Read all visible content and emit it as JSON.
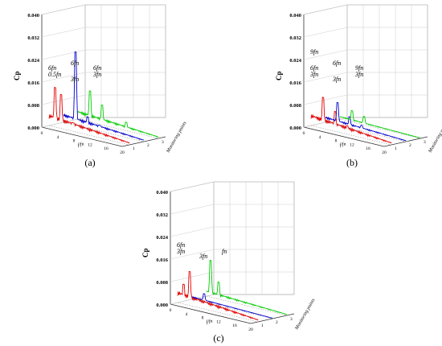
{
  "figure": {
    "panels": [
      {
        "id": "a",
        "label": "(a)"
      },
      {
        "id": "b",
        "label": "(b)"
      },
      {
        "id": "c",
        "label": "(c)"
      }
    ]
  },
  "chart_data": [
    {
      "type": "line",
      "panel": "(a)",
      "z_ticks": [
        "0.000",
        "0.008",
        "0.016",
        "0.024",
        "0.032",
        "0.040"
      ],
      "z_label": "Cp",
      "z_range": [
        0,
        0.04
      ],
      "x_ticks": [
        "0",
        "4",
        "8",
        "12",
        "16",
        "20"
      ],
      "x_label": "f/fn",
      "x_range": [
        0,
        20
      ],
      "y_ticks": [
        "1",
        "2",
        "3"
      ],
      "y_label": "Monitoring points",
      "series": [
        {
          "color": "#e00000",
          "depth": 1,
          "peaks": [
            {
              "x": 1.5,
              "y": 0.014
            },
            {
              "x": 3,
              "y": 0.012
            },
            {
              "x": 6,
              "y": 0.003
            }
          ],
          "base": 0.004
        },
        {
          "color": "#0000cc",
          "depth": 2,
          "peaks": [
            {
              "x": 3,
              "y": 0.026
            },
            {
              "x": 6,
              "y": 0.004
            },
            {
              "x": 9,
              "y": 0.002
            }
          ],
          "base": 0.003
        },
        {
          "color": "#00cc00",
          "depth": 3,
          "peaks": [
            {
              "x": 3,
              "y": 0.011
            },
            {
              "x": 6,
              "y": 0.007
            },
            {
              "x": 12,
              "y": 0.003
            }
          ],
          "base": 0.003
        }
      ],
      "annotations": [
        "0.5fn",
        "3fn",
        "3fn",
        "6fn",
        "6fn",
        "6fn"
      ]
    },
    {
      "type": "line",
      "panel": "(b)",
      "z_ticks": [
        "0.000",
        "0.008",
        "0.016",
        "0.024",
        "0.032",
        "0.040"
      ],
      "z_label": "Cp",
      "z_range": [
        0,
        0.04
      ],
      "x_ticks": [
        "0",
        "4",
        "8",
        "12",
        "16",
        "20"
      ],
      "x_label": "f/fn",
      "x_range": [
        0,
        20
      ],
      "y_ticks": [
        "1",
        "2",
        "3"
      ],
      "y_label": "Monitoring points",
      "series": [
        {
          "color": "#e00000",
          "depth": 1,
          "peaks": [
            {
              "x": 3,
              "y": 0.011
            },
            {
              "x": 6,
              "y": 0.007
            },
            {
              "x": 9,
              "y": 0.003
            }
          ],
          "base": 0.004
        },
        {
          "color": "#0000cc",
          "depth": 2,
          "peaks": [
            {
              "x": 3,
              "y": 0.008
            },
            {
              "x": 6,
              "y": 0.004
            },
            {
              "x": 9,
              "y": 0.002
            }
          ],
          "base": 0.002
        },
        {
          "color": "#00cc00",
          "depth": 3,
          "peaks": [
            {
              "x": 3,
              "y": 0.004
            },
            {
              "x": 6,
              "y": 0.003
            }
          ],
          "base": 0.001
        }
      ],
      "annotations": [
        "3fn",
        "3fn",
        "3fn",
        "6fn",
        "6fn",
        "9fn",
        "9fn"
      ]
    },
    {
      "type": "line",
      "panel": "(c)",
      "z_ticks": [
        "0.000",
        "0.008",
        "0.016",
        "0.024",
        "0.032",
        "0.040"
      ],
      "z_label": "Cp",
      "z_range": [
        0,
        0.04
      ],
      "x_ticks": [
        "0",
        "4",
        "8",
        "12",
        "16",
        "20"
      ],
      "x_label": "f/fn",
      "x_range": [
        0,
        20
      ],
      "y_ticks": [
        "1",
        "2",
        "3"
      ],
      "y_label": "Monitoring points",
      "series": [
        {
          "color": "#e00000",
          "depth": 1,
          "peaks": [
            {
              "x": 3,
              "y": 0.012
            },
            {
              "x": 1.5,
              "y": 0.007
            }
          ],
          "base": 0.004
        },
        {
          "color": "#0000cc",
          "depth": 2,
          "peaks": [
            {
              "x": 3,
              "y": 0.003
            }
          ],
          "base": 0.001
        },
        {
          "color": "#00cc00",
          "depth": 3,
          "peaks": [
            {
              "x": 1,
              "y": 0.013
            },
            {
              "x": 3,
              "y": 0.006
            }
          ],
          "base": 0.002
        }
      ],
      "annotations": [
        "3fn",
        "3fn",
        "fn",
        "6fn"
      ]
    }
  ]
}
